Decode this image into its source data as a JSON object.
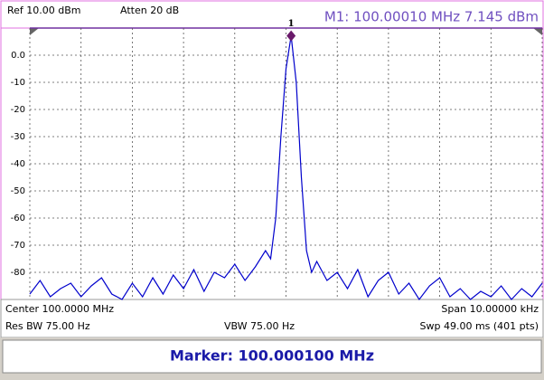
{
  "header": {
    "ref": "Ref 10.00 dBm",
    "atten": "Atten 20 dB",
    "marker_readout": "M1:  100.00010 MHz   7.145 dBm"
  },
  "chart_data": {
    "type": "line",
    "x": [
      99.995,
      99.9952,
      99.9954,
      99.9956,
      99.9958,
      99.996,
      99.9962,
      99.9964,
      99.9966,
      99.9968,
      99.997,
      99.9972,
      99.9974,
      99.9976,
      99.9978,
      99.998,
      99.9982,
      99.9984,
      99.9986,
      99.9988,
      99.999,
      99.9992,
      99.9994,
      99.9996,
      99.9997,
      99.9998,
      99.9999,
      100.0,
      100.0001,
      100.0002,
      100.0003,
      100.0004,
      100.0005,
      100.0006,
      100.0008,
      100.001,
      100.0012,
      100.0014,
      100.0016,
      100.0018,
      100.002,
      100.0022,
      100.0024,
      100.0026,
      100.0028,
      100.003,
      100.0032,
      100.0034,
      100.0036,
      100.0038,
      100.004,
      100.0042,
      100.0044,
      100.0046,
      100.0048,
      100.005
    ],
    "series": [
      {
        "color": "#0000cc",
        "values": [
          -88,
          -83,
          -89,
          -86,
          -84,
          -89,
          -85,
          -82,
          -88,
          -90,
          -84,
          -89,
          -82,
          -88,
          -81,
          -86,
          -79,
          -87,
          -80,
          -82,
          -77,
          -83,
          -78,
          -72,
          -75,
          -60,
          -30,
          -5,
          7.145,
          -10,
          -45,
          -72,
          -80,
          -76,
          -83,
          -80,
          -86,
          -79,
          -89,
          -83,
          -80,
          -88,
          -84,
          -90,
          -85,
          -82,
          -89,
          -86,
          -90,
          -87,
          -89,
          -85,
          -90,
          -86,
          -89,
          -84
        ]
      }
    ],
    "marker": {
      "label": "1",
      "x": 100.0001,
      "y": 7.145
    },
    "xlim": [
      99.995,
      100.005
    ],
    "xticks": [
      99.995,
      99.996,
      99.997,
      99.998,
      99.999,
      100.0,
      100.001,
      100.002,
      100.003,
      100.004,
      100.005
    ],
    "ylim": [
      -90,
      10
    ],
    "yticks": [
      {
        "value": 0,
        "label": "0.0"
      },
      -10,
      -20,
      -30,
      -40,
      -50,
      -60,
      -70,
      -80
    ],
    "grid": true
  },
  "status": {
    "center": "Center 100.0000 MHz",
    "span": "Span 10.00000 kHz",
    "rbw": "Res BW 75.00  Hz",
    "vbw": "VBW 75.00  Hz",
    "sweep": "Swp 49.00 ms (401 pts)"
  },
  "footer": {
    "marker": "Marker: 100.000100 MHz"
  }
}
